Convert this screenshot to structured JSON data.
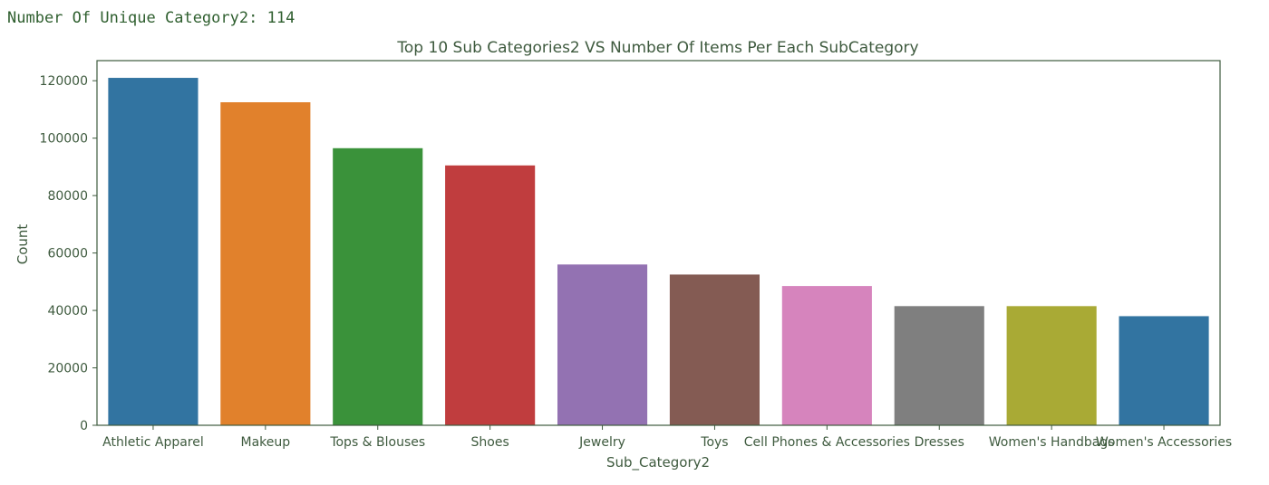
{
  "output": {
    "label": "Number Of Unique Category2:",
    "value": "114"
  },
  "chart_data": {
    "type": "bar",
    "title": "Top 10 Sub Categories2 VS Number Of Items Per Each SubCategory",
    "xlabel": "Sub_Category2",
    "ylabel": "Count",
    "ylim": [
      0,
      127000
    ],
    "yticks": [
      0,
      20000,
      40000,
      60000,
      80000,
      100000,
      120000
    ],
    "categories": [
      "Athletic Apparel",
      "Makeup",
      "Tops & Blouses",
      "Shoes",
      "Jewelry",
      "Toys",
      "Cell Phones & Accessories",
      "Dresses",
      "Women's Handbags",
      "Women's Accessories"
    ],
    "values": [
      121000,
      112500,
      96500,
      90500,
      56000,
      52500,
      48500,
      41500,
      41500,
      38000
    ],
    "colors": [
      "#3274a1",
      "#e1812c",
      "#3a923a",
      "#c03d3e",
      "#9372b2",
      "#845b53",
      "#d684bd",
      "#7f7f7f",
      "#a9aa35",
      "#3274a1"
    ],
    "grid": false
  }
}
